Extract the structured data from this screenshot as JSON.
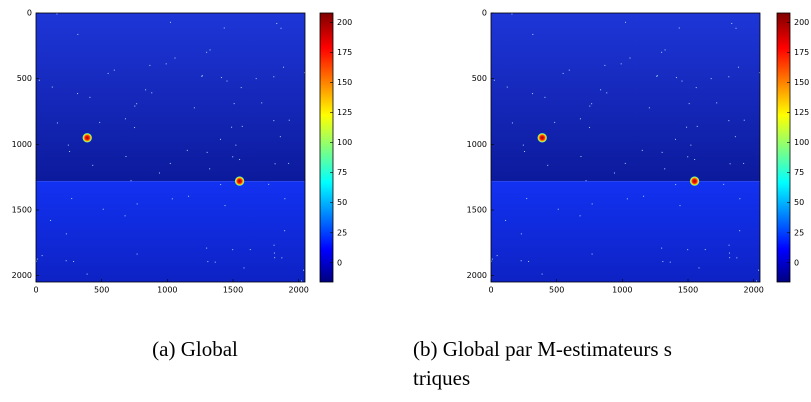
{
  "chart_data": [
    {
      "type": "image",
      "colormap": "jet",
      "caption": [
        "(a) Global"
      ],
      "xlim": [
        0,
        2048
      ],
      "ylim": [
        2048,
        0
      ],
      "xticks": [
        0,
        500,
        1000,
        1500,
        2000
      ],
      "yticks": [
        0,
        500,
        1000,
        1500,
        2000
      ],
      "sources": {
        "x": [
          390,
          1550
        ],
        "y": [
          950,
          1280
        ]
      },
      "clim": [
        -16,
        208
      ],
      "cticks": [
        0,
        25,
        50,
        75,
        100,
        125,
        150,
        175,
        200
      ]
    },
    {
      "type": "image",
      "colormap": "jet",
      "caption": [
        "(b) Global par M-estimateurs s",
        "triques"
      ],
      "xlim": [
        0,
        2048
      ],
      "ylim": [
        2048,
        0
      ],
      "xticks": [
        0,
        500,
        1000,
        1500,
        2000
      ],
      "yticks": [
        0,
        500,
        1000,
        1500,
        2000
      ],
      "sources": {
        "x": [
          390,
          1550
        ],
        "y": [
          950,
          1280
        ]
      },
      "clim": [
        -16,
        208
      ],
      "cticks": [
        0,
        25,
        50,
        75,
        100,
        125,
        150,
        175,
        200
      ]
    }
  ]
}
